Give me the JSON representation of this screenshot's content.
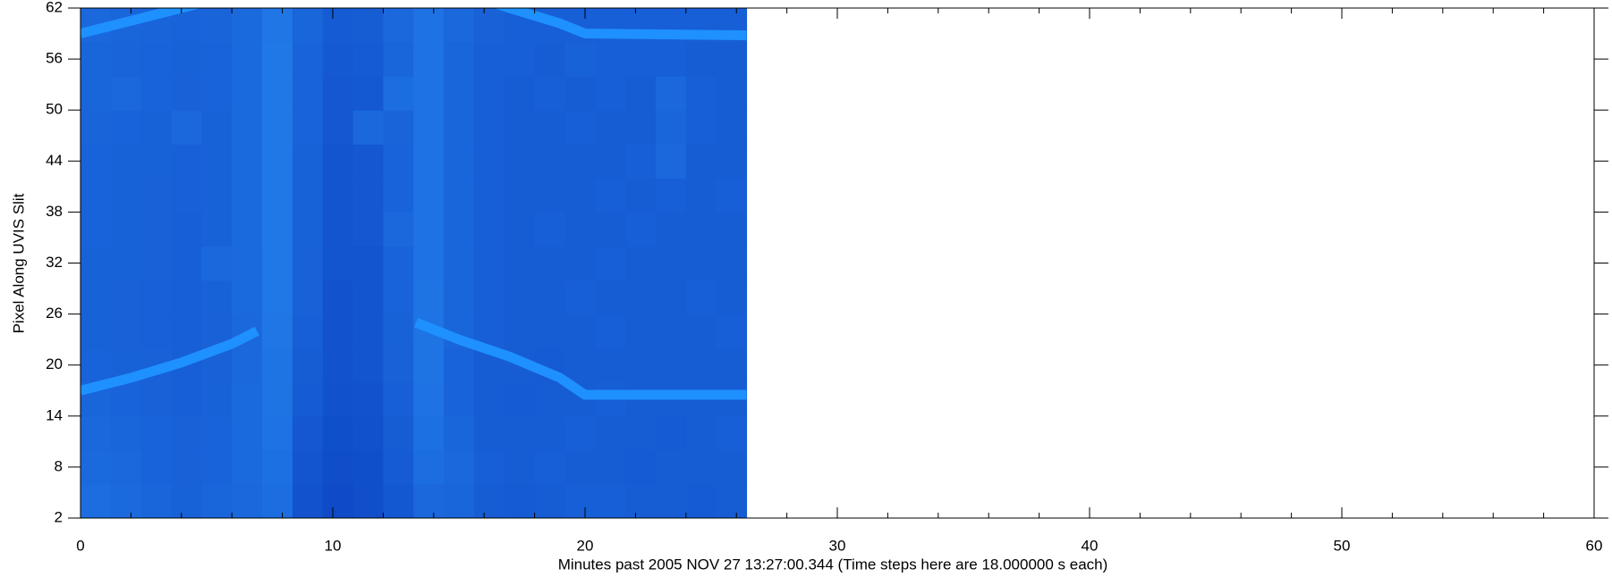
{
  "chart_data": {
    "type": "heatmap",
    "xlabel": "Minutes past 2005 NOV 27 13:27:00.344 (Time steps here are 18.000000 s each)",
    "ylabel": "Pixel Along UVIS Slit",
    "xlim": [
      0,
      60
    ],
    "ylim": [
      2,
      62
    ],
    "xticks": [
      0,
      10,
      20,
      30,
      40,
      50,
      60
    ],
    "xminorticks": [
      2,
      4,
      6,
      8,
      12,
      14,
      16,
      18,
      22,
      24,
      26,
      28,
      32,
      34,
      36,
      38,
      42,
      44,
      46,
      48,
      52,
      54,
      56,
      58
    ],
    "yticks": [
      2,
      8,
      14,
      20,
      26,
      32,
      38,
      44,
      50,
      56,
      62
    ],
    "x_edges": [
      0,
      1.2,
      2.4,
      3.6,
      4.8,
      6,
      7.2,
      8.4,
      9.6,
      10.8,
      12,
      13.2,
      14.4,
      15.6,
      16.8,
      18,
      19.2,
      20.4,
      21.6,
      22.8,
      24,
      25.2,
      26.4
    ],
    "y_edges": [
      2,
      6,
      10,
      14,
      18,
      22,
      26,
      30,
      34,
      38,
      42,
      46,
      50,
      54,
      58,
      62
    ],
    "zlim": [
      0,
      1
    ],
    "colors": [
      "#0634b8",
      "#2e9bff"
    ],
    "z": [
      [
        0.55,
        0.52,
        0.48,
        0.45,
        0.48,
        0.5,
        0.55,
        0.3,
        0.22,
        0.25,
        0.35,
        0.5,
        0.48,
        0.4,
        0.38,
        0.4,
        0.42,
        0.42,
        0.4,
        0.4,
        0.38,
        0.4
      ],
      [
        0.52,
        0.5,
        0.46,
        0.44,
        0.46,
        0.52,
        0.58,
        0.32,
        0.24,
        0.26,
        0.38,
        0.55,
        0.5,
        0.42,
        0.4,
        0.42,
        0.4,
        0.4,
        0.38,
        0.4,
        0.4,
        0.4
      ],
      [
        0.5,
        0.48,
        0.46,
        0.44,
        0.46,
        0.52,
        0.6,
        0.34,
        0.26,
        0.28,
        0.4,
        0.58,
        0.48,
        0.4,
        0.4,
        0.4,
        0.42,
        0.4,
        0.4,
        0.38,
        0.4,
        0.42
      ],
      [
        0.48,
        0.46,
        0.44,
        0.42,
        0.45,
        0.52,
        0.62,
        0.38,
        0.28,
        0.3,
        0.42,
        0.6,
        0.46,
        0.4,
        0.38,
        0.4,
        0.4,
        0.42,
        0.4,
        0.4,
        0.4,
        0.4
      ],
      [
        0.46,
        0.45,
        0.44,
        0.42,
        0.44,
        0.5,
        0.62,
        0.4,
        0.3,
        0.32,
        0.44,
        0.62,
        0.46,
        0.4,
        0.4,
        0.38,
        0.4,
        0.4,
        0.4,
        0.4,
        0.4,
        0.4
      ],
      [
        0.45,
        0.44,
        0.43,
        0.42,
        0.44,
        0.5,
        0.64,
        0.42,
        0.3,
        0.32,
        0.45,
        0.62,
        0.48,
        0.42,
        0.4,
        0.4,
        0.4,
        0.42,
        0.4,
        0.4,
        0.4,
        0.42
      ],
      [
        0.45,
        0.44,
        0.43,
        0.42,
        0.45,
        0.52,
        0.65,
        0.44,
        0.3,
        0.32,
        0.46,
        0.62,
        0.48,
        0.42,
        0.4,
        0.4,
        0.42,
        0.4,
        0.4,
        0.4,
        0.42,
        0.4
      ],
      [
        0.45,
        0.45,
        0.44,
        0.42,
        0.5,
        0.52,
        0.65,
        0.44,
        0.32,
        0.32,
        0.46,
        0.6,
        0.48,
        0.42,
        0.4,
        0.4,
        0.4,
        0.42,
        0.4,
        0.4,
        0.4,
        0.4
      ],
      [
        0.46,
        0.45,
        0.44,
        0.42,
        0.45,
        0.52,
        0.66,
        0.45,
        0.32,
        0.34,
        0.5,
        0.6,
        0.48,
        0.42,
        0.4,
        0.42,
        0.4,
        0.4,
        0.42,
        0.4,
        0.4,
        0.4
      ],
      [
        0.46,
        0.45,
        0.44,
        0.43,
        0.45,
        0.52,
        0.66,
        0.45,
        0.32,
        0.34,
        0.46,
        0.6,
        0.48,
        0.42,
        0.4,
        0.4,
        0.4,
        0.42,
        0.4,
        0.42,
        0.4,
        0.42
      ],
      [
        0.46,
        0.45,
        0.45,
        0.43,
        0.45,
        0.52,
        0.66,
        0.45,
        0.32,
        0.34,
        0.46,
        0.6,
        0.48,
        0.42,
        0.4,
        0.4,
        0.4,
        0.4,
        0.42,
        0.5,
        0.4,
        0.4
      ],
      [
        0.47,
        0.46,
        0.45,
        0.5,
        0.45,
        0.52,
        0.66,
        0.46,
        0.34,
        0.5,
        0.47,
        0.6,
        0.48,
        0.42,
        0.4,
        0.4,
        0.42,
        0.4,
        0.4,
        0.48,
        0.42,
        0.4
      ],
      [
        0.48,
        0.5,
        0.46,
        0.44,
        0.46,
        0.52,
        0.66,
        0.46,
        0.34,
        0.36,
        0.55,
        0.6,
        0.48,
        0.42,
        0.4,
        0.42,
        0.4,
        0.42,
        0.4,
        0.5,
        0.42,
        0.4
      ],
      [
        0.48,
        0.47,
        0.46,
        0.45,
        0.46,
        0.52,
        0.66,
        0.46,
        0.36,
        0.38,
        0.48,
        0.6,
        0.48,
        0.42,
        0.42,
        0.4,
        0.45,
        0.42,
        0.42,
        0.42,
        0.4,
        0.4
      ],
      [
        0.5,
        0.48,
        0.47,
        0.46,
        0.47,
        0.52,
        0.64,
        0.48,
        0.38,
        0.4,
        0.5,
        0.6,
        0.5,
        0.44,
        0.42,
        0.42,
        0.42,
        0.42,
        0.42,
        0.42,
        0.42,
        0.42
      ]
    ],
    "lines": [
      {
        "color": "#1e90ff",
        "x": [
          0,
          2,
          4,
          6,
          7
        ],
        "y": [
          17,
          18.5,
          20.3,
          22.5,
          24
        ]
      },
      {
        "color": "#1e90ff",
        "x": [
          13.3,
          15,
          17,
          19,
          20,
          26.4
        ],
        "y": [
          25,
          23,
          21,
          18.5,
          16.5,
          16.5
        ]
      },
      {
        "color": "#1e90ff",
        "x": [
          0,
          2,
          4,
          6
        ],
        "y": [
          59,
          60.5,
          62,
          63.5
        ]
      },
      {
        "color": "#1e90ff",
        "x": [
          15.5,
          17,
          19,
          20,
          26.4
        ],
        "y": [
          63.5,
          62,
          60.2,
          59,
          58.8
        ]
      }
    ]
  }
}
